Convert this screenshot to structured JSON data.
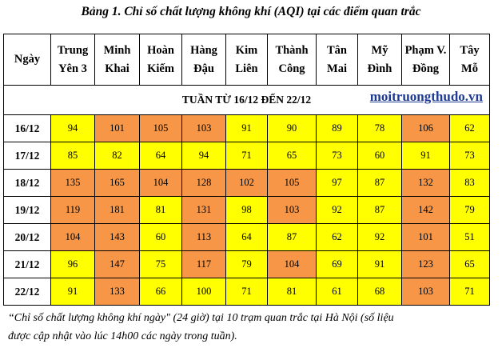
{
  "title": "Bảng 1. Chỉ số chất lượng không khí (AQI) tại các điểm quan trắc",
  "table": {
    "corner": "Ngày",
    "stations": [
      [
        "Trung",
        "Yên 3"
      ],
      [
        "Minh",
        "Khai"
      ],
      [
        "Hoàn",
        "Kiếm"
      ],
      [
        "Hàng",
        "Đậu"
      ],
      [
        "Kim",
        "Liên"
      ],
      [
        "Thành",
        "Công"
      ],
      [
        "Tân",
        "Mai"
      ],
      [
        "Mỹ",
        "Đình"
      ],
      [
        "Phạm V.",
        "Đồng"
      ],
      [
        "Tây",
        "Mỗ"
      ]
    ],
    "week_label": "TUẦN TỪ 16/12 ĐẾN 22/12",
    "site": "moitruongthudo.vn",
    "rows": [
      {
        "day": "16/12",
        "values": [
          94,
          101,
          105,
          103,
          91,
          90,
          89,
          78,
          106,
          62
        ]
      },
      {
        "day": "17/12",
        "values": [
          85,
          82,
          64,
          94,
          71,
          65,
          73,
          60,
          91,
          73
        ]
      },
      {
        "day": "18/12",
        "values": [
          135,
          165,
          104,
          128,
          102,
          105,
          97,
          87,
          132,
          83
        ]
      },
      {
        "day": "19/12",
        "values": [
          119,
          181,
          81,
          131,
          98,
          103,
          92,
          87,
          142,
          79
        ]
      },
      {
        "day": "20/12",
        "values": [
          104,
          143,
          60,
          113,
          64,
          87,
          62,
          92,
          101,
          51
        ]
      },
      {
        "day": "21/12",
        "values": [
          96,
          147,
          75,
          117,
          79,
          104,
          69,
          91,
          123,
          65
        ]
      },
      {
        "day": "22/12",
        "values": [
          91,
          133,
          66,
          100,
          71,
          81,
          61,
          68,
          103,
          71
        ]
      }
    ],
    "color_threshold": 100,
    "colors": {
      "moderate": "#ffff00",
      "unhealthy_sensitive": "#f79646"
    }
  },
  "caption": {
    "line1": "“Chỉ số chất lượng không khí ngày\" (24 giờ) tại 10 trạm quan trắc tại Hà Nội (số liệu",
    "line2": "được cập nhật vào lúc 14h00 các ngày trong tuần)."
  }
}
